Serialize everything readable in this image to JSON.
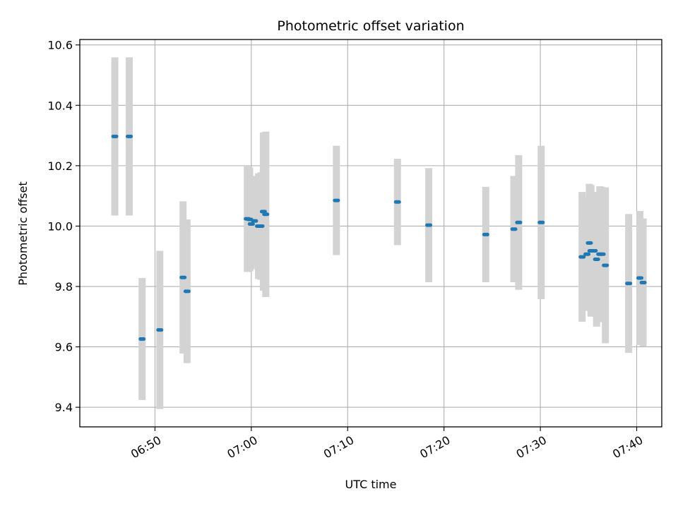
{
  "chart_data": {
    "type": "scatter",
    "title": "Photometric offset variation",
    "xlabel": "UTC time",
    "ylabel": "Photometric offset",
    "x_ticks": [
      "06:50",
      "07:00",
      "07:10",
      "07:20",
      "07:30",
      "07:40"
    ],
    "x_tick_minutes": [
      50,
      60,
      70,
      80,
      90,
      100
    ],
    "y_ticks": [
      "9.4",
      "9.6",
      "9.8",
      "10.0",
      "10.2",
      "10.4",
      "10.6"
    ],
    "y_tick_values": [
      9.4,
      9.6,
      9.8,
      10.0,
      10.2,
      10.4,
      10.6
    ],
    "xlim_minutes_after_0600": [
      42.2,
      102.6
    ],
    "ylim": [
      9.335,
      10.618
    ],
    "grid": true,
    "errorbar_color": "#d3d3d3",
    "marker_color": "#1f77b4",
    "points": [
      {
        "t": "06:45:50",
        "y": 10.297,
        "err": 0.262
      },
      {
        "t": "06:47:20",
        "y": 10.297,
        "err": 0.262
      },
      {
        "t": "06:48:40",
        "y": 9.626,
        "err": 0.202
      },
      {
        "t": "06:50:30",
        "y": 9.656,
        "err": 0.262
      },
      {
        "t": "06:52:55",
        "y": 9.83,
        "err": 0.252
      },
      {
        "t": "06:53:20",
        "y": 9.784,
        "err": 0.238
      },
      {
        "t": "06:59:35",
        "y": 10.024,
        "err": 0.176
      },
      {
        "t": "06:59:50",
        "y": 10.022,
        "err": 0.172
      },
      {
        "t": "07:00:00",
        "y": 10.007,
        "err": 0.15
      },
      {
        "t": "07:00:20",
        "y": 10.017,
        "err": 0.149
      },
      {
        "t": "07:00:45",
        "y": 10.0,
        "err": 0.175
      },
      {
        "t": "07:01:00",
        "y": 10.0,
        "err": 0.178
      },
      {
        "t": "07:01:15",
        "y": 10.048,
        "err": 0.262
      },
      {
        "t": "07:01:30",
        "y": 10.039,
        "err": 0.274
      },
      {
        "t": "07:08:50",
        "y": 10.085,
        "err": 0.181
      },
      {
        "t": "07:15:10",
        "y": 10.08,
        "err": 0.143
      },
      {
        "t": "07:18:25",
        "y": 10.003,
        "err": 0.189
      },
      {
        "t": "07:24:20",
        "y": 9.972,
        "err": 0.158
      },
      {
        "t": "07:27:15",
        "y": 9.99,
        "err": 0.176
      },
      {
        "t": "07:27:45",
        "y": 10.012,
        "err": 0.223
      },
      {
        "t": "07:30:05",
        "y": 10.012,
        "err": 0.254
      },
      {
        "t": "07:34:20",
        "y": 9.898,
        "err": 0.215
      },
      {
        "t": "07:34:50",
        "y": 9.907,
        "err": 0.188
      },
      {
        "t": "07:35:05",
        "y": 9.944,
        "err": 0.196
      },
      {
        "t": "07:35:15",
        "y": 9.918,
        "err": 0.218
      },
      {
        "t": "07:35:35",
        "y": 9.918,
        "err": 0.183
      },
      {
        "t": "07:35:50",
        "y": 9.89,
        "err": 0.223
      },
      {
        "t": "07:36:10",
        "y": 9.907,
        "err": 0.225
      },
      {
        "t": "07:36:25",
        "y": 9.907,
        "err": 0.223
      },
      {
        "t": "07:36:45",
        "y": 9.87,
        "err": 0.258
      },
      {
        "t": "07:39:10",
        "y": 9.81,
        "err": 0.23
      },
      {
        "t": "07:40:20",
        "y": 9.828,
        "err": 0.222
      },
      {
        "t": "07:40:40",
        "y": 9.813,
        "err": 0.212
      }
    ]
  }
}
